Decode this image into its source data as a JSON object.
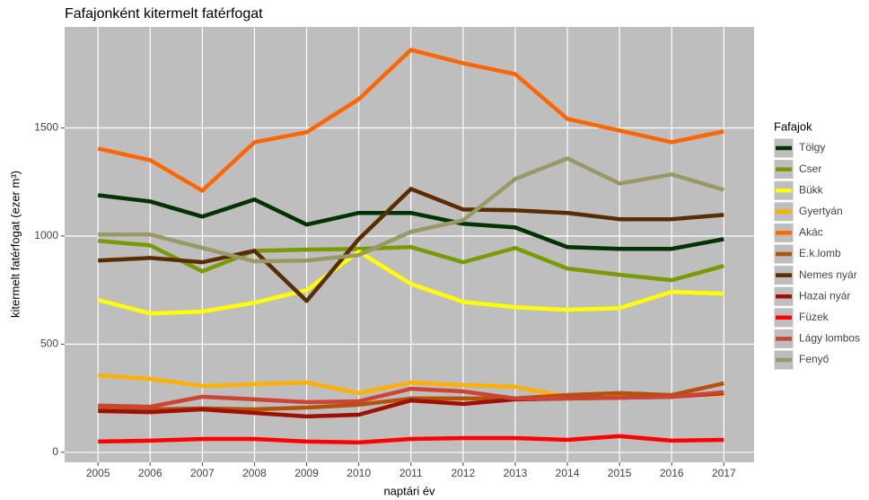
{
  "chart_data": {
    "type": "line",
    "title": "Fafajonként kitermelt fatérfogat",
    "x_label": "naptári év",
    "y_label": "kitermelt fatérfogat (ezer m³)",
    "legend_title": "Fafajok",
    "legend": "right",
    "grid": true,
    "x": [
      2005,
      2006,
      2007,
      2008,
      2009,
      2010,
      2011,
      2012,
      2013,
      2014,
      2015,
      2016,
      2017
    ],
    "xlim": [
      2004.36,
      2017.58
    ],
    "xticks": [
      2005,
      2006,
      2007,
      2008,
      2009,
      2010,
      2011,
      2012,
      2013,
      2014,
      2015,
      2016,
      2017
    ],
    "ylim": [
      -46,
      1967
    ],
    "yticks": [
      0,
      500,
      1000,
      1500
    ],
    "series": [
      {
        "name": "Tölgy",
        "color": "#003300",
        "values": [
          1189,
          1160,
          1090,
          1169,
          1053,
          1107,
          1107,
          1057,
          1040,
          949,
          941,
          941,
          986
        ]
      },
      {
        "name": "Cser",
        "color": "#7a9a01",
        "values": [
          978,
          957,
          837,
          932,
          937,
          941,
          949,
          879,
          945,
          850,
          821,
          796,
          862
        ]
      },
      {
        "name": "Bükk",
        "color": "#ffff00",
        "values": [
          705,
          642,
          651,
          692,
          750,
          928,
          779,
          696,
          671,
          659,
          667,
          742,
          734
        ]
      },
      {
        "name": "Gyertyán",
        "color": "#ffb000",
        "values": [
          356,
          340,
          307,
          315,
          323,
          274,
          323,
          311,
          303,
          257,
          257,
          261,
          269
        ]
      },
      {
        "name": "Akác",
        "color": "#ff6600",
        "values": [
          1405,
          1351,
          1210,
          1434,
          1480,
          1633,
          1861,
          1799,
          1749,
          1542,
          1488,
          1434,
          1484
        ]
      },
      {
        "name": "E.k.lomb",
        "color": "#b5520a",
        "values": [
          207,
          199,
          203,
          199,
          207,
          220,
          249,
          249,
          249,
          265,
          274,
          265,
          319
        ]
      },
      {
        "name": "Nemes nyár",
        "color": "#5a2d00",
        "values": [
          887,
          899,
          879,
          932,
          700,
          986,
          1218,
          1123,
          1119,
          1107,
          1078,
          1078,
          1098
        ]
      },
      {
        "name": "Hazai nyár",
        "color": "#a01000",
        "values": [
          191,
          186,
          199,
          182,
          166,
          174,
          240,
          224,
          245,
          249,
          253,
          257,
          274
        ]
      },
      {
        "name": "Füzek",
        "color": "#ff0000",
        "values": [
          50,
          54,
          62,
          62,
          50,
          46,
          62,
          66,
          66,
          58,
          75,
          54,
          58
        ]
      },
      {
        "name": "Lágy lombos",
        "color": "#cc4433",
        "values": [
          216,
          211,
          257,
          245,
          232,
          236,
          294,
          282,
          249,
          249,
          253,
          257,
          278
        ]
      },
      {
        "name": "Fenyő",
        "color": "#999966",
        "values": [
          1007,
          1007,
          945,
          883,
          887,
          912,
          1020,
          1073,
          1264,
          1359,
          1243,
          1285,
          1214
        ]
      }
    ]
  }
}
